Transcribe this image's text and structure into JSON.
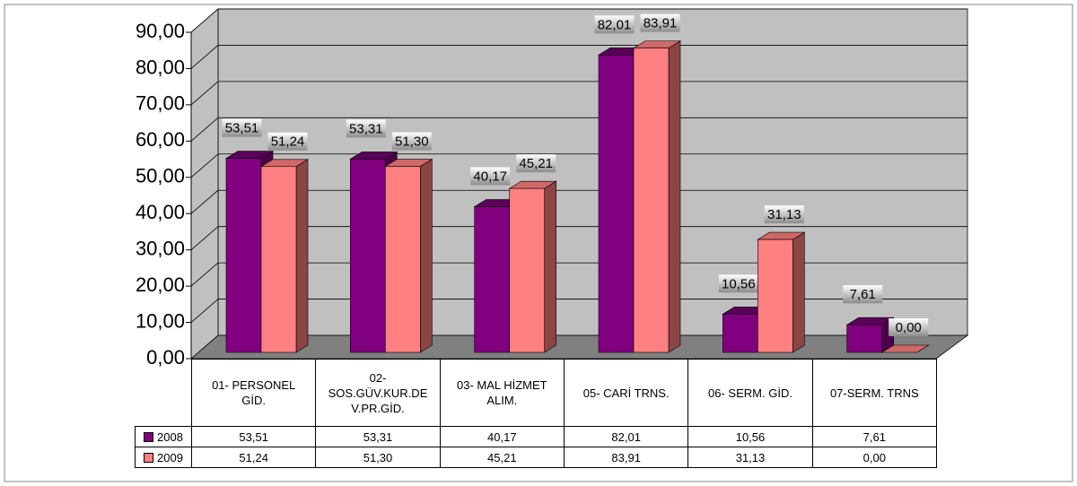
{
  "chart_data": {
    "type": "bar3d",
    "categories": [
      "01- PERSONEL GİD.",
      "02- SOS.GÜV.KUR.DEV.PR.GİD.",
      "03- MAL HİZMET ALIM.",
      "05- CARİ TRNS.",
      "06- SERM. GİD.",
      "07-SERM. TRNS"
    ],
    "series": [
      {
        "name": "2008",
        "color": "#800080",
        "values": [
          53.51,
          53.31,
          40.17,
          82.01,
          10.56,
          7.61
        ],
        "value_labels": [
          "53,51",
          "53,31",
          "40,17",
          "82,01",
          "10,56",
          "7,61"
        ]
      },
      {
        "name": "2009",
        "color": "#ff8080",
        "values": [
          51.24,
          51.3,
          45.21,
          83.91,
          31.13,
          0.0
        ],
        "value_labels": [
          "51,24",
          "51,30",
          "45,21",
          "83,91",
          "31,13",
          "0,00"
        ]
      }
    ],
    "ylim": [
      0,
      90
    ],
    "yticks": [
      {
        "value": 0,
        "label": "0,00"
      },
      {
        "value": 10,
        "label": "10,00"
      },
      {
        "value": 20,
        "label": "20,00"
      },
      {
        "value": 30,
        "label": "30,00"
      },
      {
        "value": 40,
        "label": "40,00"
      },
      {
        "value": 50,
        "label": "50,00"
      },
      {
        "value": 60,
        "label": "60,00"
      },
      {
        "value": 70,
        "label": "70,00"
      },
      {
        "value": 80,
        "label": "80,00"
      },
      {
        "value": 90,
        "label": "90,00"
      }
    ],
    "grid": true
  }
}
